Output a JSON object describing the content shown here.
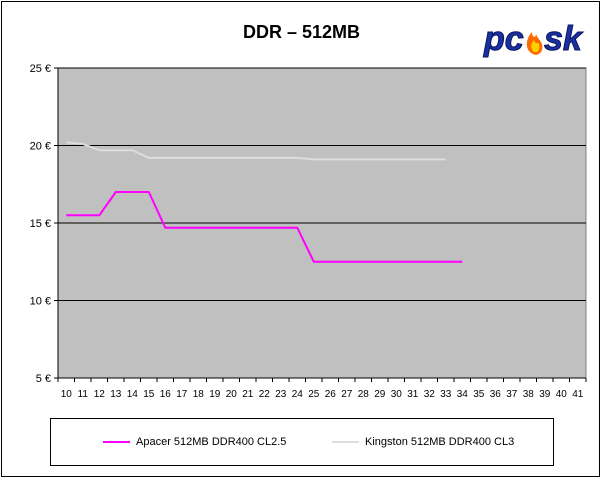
{
  "chart_data": {
    "type": "line",
    "title": "DDR – 512MB",
    "xlabel": "",
    "ylabel": "",
    "x": [
      10,
      11,
      12,
      13,
      14,
      15,
      16,
      17,
      18,
      19,
      20,
      21,
      22,
      23,
      24,
      25,
      26,
      27,
      28,
      29,
      30,
      31,
      32,
      33,
      34,
      35,
      36,
      37,
      38,
      39,
      40,
      41
    ],
    "xlim": [
      10,
      41
    ],
    "ylim": [
      5,
      25
    ],
    "yticks": [
      25,
      20,
      15,
      10,
      5
    ],
    "ytick_labels": [
      "25 €",
      "20 €",
      "15 €",
      "10 €",
      "5 €"
    ],
    "grid": true,
    "legend_position": "bottom",
    "plot_background": "#c0c0c0",
    "series": [
      {
        "name": "Apacer 512MB DDR400 CL2.5",
        "color": "#ff00ff",
        "x": [
          10,
          11,
          12,
          13,
          14,
          15,
          16,
          17,
          18,
          19,
          20,
          21,
          22,
          23,
          24,
          25,
          26,
          27,
          28,
          29,
          30,
          31,
          32,
          33,
          34
        ],
        "values": [
          15.5,
          15.5,
          15.5,
          17.0,
          17.0,
          17.0,
          14.7,
          14.7,
          14.7,
          14.7,
          14.7,
          14.7,
          14.7,
          14.7,
          14.7,
          12.5,
          12.5,
          12.5,
          12.5,
          12.5,
          12.5,
          12.5,
          12.5,
          12.5,
          12.5
        ]
      },
      {
        "name": "Kingston 512MB DDR400 CL3",
        "color": "#dddddd",
        "x": [
          10,
          11,
          12,
          13,
          14,
          15,
          16,
          17,
          18,
          19,
          20,
          21,
          22,
          23,
          24,
          25,
          26,
          27,
          28,
          29,
          30,
          31,
          32,
          33
        ],
        "values": [
          20.2,
          20.1,
          19.7,
          19.7,
          19.7,
          19.2,
          19.2,
          19.2,
          19.2,
          19.2,
          19.2,
          19.2,
          19.2,
          19.2,
          19.2,
          19.1,
          19.1,
          19.1,
          19.1,
          19.1,
          19.1,
          19.1,
          19.1,
          19.1
        ]
      }
    ]
  },
  "logo": {
    "text": "pcask"
  }
}
